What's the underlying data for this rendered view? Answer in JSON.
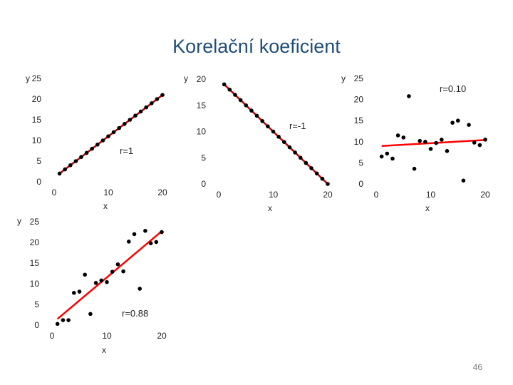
{
  "slide": {
    "title": "Korelační koeficient",
    "page_number": "46"
  },
  "chart_data": [
    {
      "type": "scatter",
      "xlabel": "x",
      "ylabel": "y",
      "xlim": [
        0,
        20
      ],
      "ylim": [
        0,
        25
      ],
      "xticks": [
        "0",
        "10",
        "20"
      ],
      "yticks": [
        "0",
        "5",
        "10",
        "15",
        "20",
        "25"
      ],
      "annotation": "r=1",
      "line_color": "#c00000",
      "points": [
        [
          1,
          2
        ],
        [
          2,
          3
        ],
        [
          3,
          4
        ],
        [
          4,
          5
        ],
        [
          5,
          6
        ],
        [
          6,
          7
        ],
        [
          7,
          8
        ],
        [
          8,
          9
        ],
        [
          9,
          10
        ],
        [
          10,
          11
        ],
        [
          11,
          12
        ],
        [
          12,
          13
        ],
        [
          13,
          14
        ],
        [
          14,
          15
        ],
        [
          15,
          16
        ],
        [
          16,
          17
        ],
        [
          17,
          18
        ],
        [
          18,
          19
        ],
        [
          19,
          20
        ],
        [
          20,
          21
        ]
      ],
      "fit": [
        [
          1,
          2
        ],
        [
          20,
          21
        ]
      ]
    },
    {
      "type": "scatter",
      "xlabel": "x",
      "ylabel": "y",
      "xlim": [
        0,
        20
      ],
      "ylim": [
        0,
        20
      ],
      "xticks": [
        "0",
        "10",
        "20"
      ],
      "yticks": [
        "0",
        "5",
        "10",
        "15",
        "20"
      ],
      "annotation": "r=-1",
      "line_color": "#c00000",
      "points": [
        [
          1,
          19
        ],
        [
          2,
          18
        ],
        [
          3,
          17
        ],
        [
          4,
          16
        ],
        [
          5,
          15
        ],
        [
          6,
          14
        ],
        [
          7,
          13
        ],
        [
          8,
          12
        ],
        [
          9,
          11
        ],
        [
          10,
          10
        ],
        [
          11,
          9
        ],
        [
          12,
          8
        ],
        [
          13,
          7
        ],
        [
          14,
          6
        ],
        [
          15,
          5
        ],
        [
          16,
          4
        ],
        [
          17,
          3
        ],
        [
          18,
          2
        ],
        [
          19,
          1
        ],
        [
          20,
          0
        ]
      ],
      "fit": [
        [
          1,
          19
        ],
        [
          20,
          0
        ]
      ]
    },
    {
      "type": "scatter",
      "xlabel": "x",
      "ylabel": "y",
      "xlim": [
        0,
        20
      ],
      "ylim": [
        0,
        25
      ],
      "xticks": [
        "0",
        "10",
        "20"
      ],
      "yticks": [
        "0",
        "5",
        "10",
        "15",
        "20",
        "25"
      ],
      "annotation": "r=0.10",
      "line_color": "#ff0000",
      "points": [
        [
          1,
          6.5
        ],
        [
          2,
          7.2
        ],
        [
          3,
          6
        ],
        [
          4,
          11.5
        ],
        [
          5,
          11
        ],
        [
          6,
          20.8
        ],
        [
          7,
          3.6
        ],
        [
          8,
          10.2
        ],
        [
          9,
          10
        ],
        [
          10,
          8.3
        ],
        [
          11,
          9.7
        ],
        [
          12,
          10.5
        ],
        [
          13,
          7.8
        ],
        [
          14,
          14.5
        ],
        [
          15,
          15
        ],
        [
          16,
          0.8
        ],
        [
          17,
          14
        ],
        [
          18,
          9.8
        ],
        [
          19,
          9.2
        ],
        [
          20,
          10.5
        ]
      ],
      "fit": [
        [
          1,
          9
        ],
        [
          20,
          10.4
        ]
      ]
    },
    {
      "type": "scatter",
      "xlabel": "x",
      "ylabel": "y",
      "xlim": [
        0,
        20
      ],
      "ylim": [
        0,
        25
      ],
      "xticks": [
        "0",
        "10",
        "20"
      ],
      "yticks": [
        "0",
        "5",
        "10",
        "15",
        "20",
        "25"
      ],
      "annotation": "r=0.88",
      "line_color": "#ff0000",
      "points": [
        [
          1,
          0.3
        ],
        [
          2,
          1.2
        ],
        [
          3,
          1.2
        ],
        [
          4,
          7.8
        ],
        [
          5,
          8.1
        ],
        [
          6,
          12.2
        ],
        [
          7,
          2.7
        ],
        [
          8,
          10.2
        ],
        [
          9,
          10.8
        ],
        [
          10,
          10.4
        ],
        [
          11,
          12.9
        ],
        [
          12,
          14.7
        ],
        [
          13,
          13
        ],
        [
          14,
          20.2
        ],
        [
          15,
          22
        ],
        [
          16,
          8.8
        ],
        [
          17,
          22.8
        ],
        [
          18,
          19.8
        ],
        [
          19,
          20.1
        ],
        [
          20,
          22.5
        ]
      ],
      "fit": [
        [
          1,
          1.5
        ],
        [
          20,
          22.7
        ]
      ]
    }
  ]
}
